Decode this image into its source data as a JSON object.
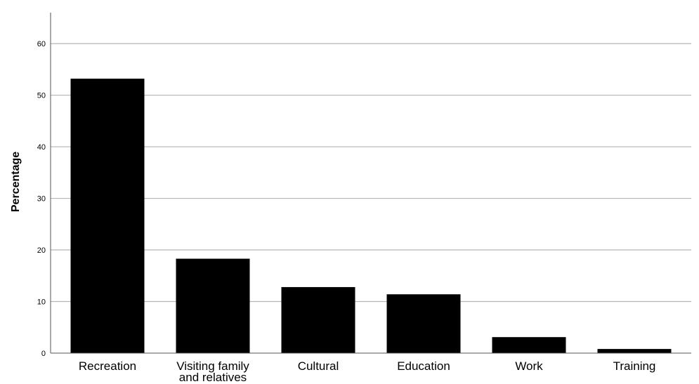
{
  "chart_data": {
    "type": "bar",
    "title": "",
    "xlabel": "",
    "ylabel": "Percentage",
    "ylim": [
      0,
      66
    ],
    "yticks": [
      0,
      10,
      20,
      30,
      40,
      50,
      60
    ],
    "grid": true,
    "bar_color": "#000000",
    "grid_color": "#b5b5b5",
    "categories": [
      [
        "Recreation"
      ],
      [
        "Visiting family",
        "and relatives"
      ],
      [
        "Cultural"
      ],
      [
        "Education"
      ],
      [
        "Work"
      ],
      [
        "Training"
      ]
    ],
    "values": [
      53.2,
      18.3,
      12.8,
      11.4,
      3.1,
      0.8
    ]
  }
}
